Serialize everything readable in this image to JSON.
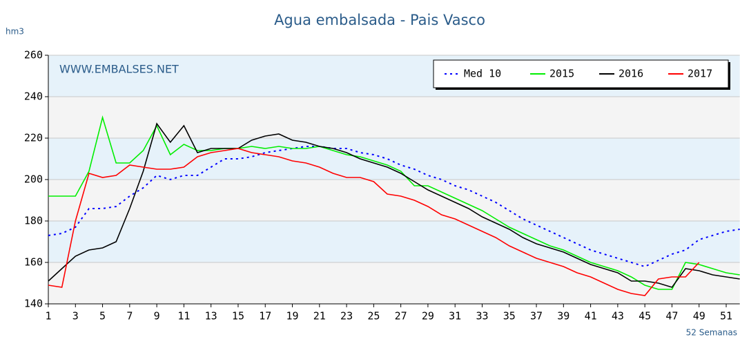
{
  "chart_data": {
    "type": "line",
    "title": "Agua embalsada - Pais Vasco",
    "y_label": "hm3",
    "x_label": "52 Semanas",
    "watermark": "WWW.EMBALSES.NET",
    "x": [
      1,
      2,
      3,
      4,
      5,
      6,
      7,
      8,
      9,
      10,
      11,
      12,
      13,
      14,
      15,
      16,
      17,
      18,
      19,
      20,
      21,
      22,
      23,
      24,
      25,
      26,
      27,
      28,
      29,
      30,
      31,
      32,
      33,
      34,
      35,
      36,
      37,
      38,
      39,
      40,
      41,
      42,
      43,
      44,
      45,
      46,
      47,
      48,
      49,
      50,
      51,
      52
    ],
    "xlim": [
      1,
      52
    ],
    "xticks": [
      1,
      3,
      5,
      7,
      9,
      11,
      13,
      15,
      17,
      19,
      21,
      23,
      25,
      27,
      29,
      31,
      33,
      35,
      37,
      39,
      41,
      43,
      45,
      47,
      49,
      51
    ],
    "ylim": [
      140,
      260
    ],
    "yticks": [
      140,
      160,
      180,
      200,
      220,
      240,
      260
    ],
    "legend": "top-right",
    "series": [
      {
        "name": "Med 10",
        "color": "#0000ff",
        "line_style": "dotted",
        "values": [
          173,
          174,
          177,
          186,
          186,
          187,
          192,
          196,
          202,
          200,
          202,
          202,
          206,
          210,
          210,
          211,
          213,
          214,
          215,
          216,
          216,
          215,
          215,
          213,
          212,
          210,
          207,
          205,
          202,
          200,
          197,
          195,
          192,
          189,
          185,
          181,
          178,
          175,
          172,
          169,
          166,
          164,
          162,
          160,
          158,
          161,
          164,
          166,
          171,
          173,
          175,
          176
        ]
      },
      {
        "name": "2015",
        "color": "#00ee00",
        "line_style": "solid",
        "values": [
          192,
          192,
          192,
          204,
          230,
          208,
          208,
          214,
          226,
          212,
          217,
          214,
          214,
          215,
          215,
          216,
          215,
          216,
          215,
          215,
          216,
          214,
          212,
          211,
          209,
          207,
          204,
          197,
          197,
          194,
          191,
          188,
          185,
          181,
          177,
          174,
          171,
          168,
          166,
          163,
          160,
          158,
          156,
          153,
          149,
          147,
          147,
          160,
          159,
          157,
          155,
          154
        ]
      },
      {
        "name": "2016",
        "color": "#000000",
        "line_style": "solid",
        "values": [
          151,
          157,
          163,
          166,
          167,
          170,
          186,
          204,
          227,
          218,
          226,
          213,
          215,
          215,
          215,
          219,
          221,
          222,
          219,
          218,
          216,
          215,
          213,
          210,
          208,
          206,
          203,
          199,
          195,
          192,
          189,
          186,
          182,
          179,
          176,
          172,
          169,
          167,
          165,
          162,
          159,
          157,
          155,
          151,
          151,
          150,
          148,
          157,
          156,
          154,
          153,
          152
        ]
      },
      {
        "name": "2017",
        "color": "#ff0000",
        "line_style": "solid",
        "values": [
          149,
          148,
          180,
          203,
          201,
          202,
          207,
          206,
          205,
          205,
          206,
          211,
          213,
          214,
          215,
          213,
          212,
          211,
          209,
          208,
          206,
          203,
          201,
          201,
          199,
          193,
          192,
          190,
          187,
          183,
          181,
          178,
          175,
          172,
          168,
          165,
          162,
          160,
          158,
          155,
          153,
          150,
          147,
          145,
          144,
          152,
          153,
          153,
          160,
          null,
          null,
          null
        ]
      }
    ]
  }
}
